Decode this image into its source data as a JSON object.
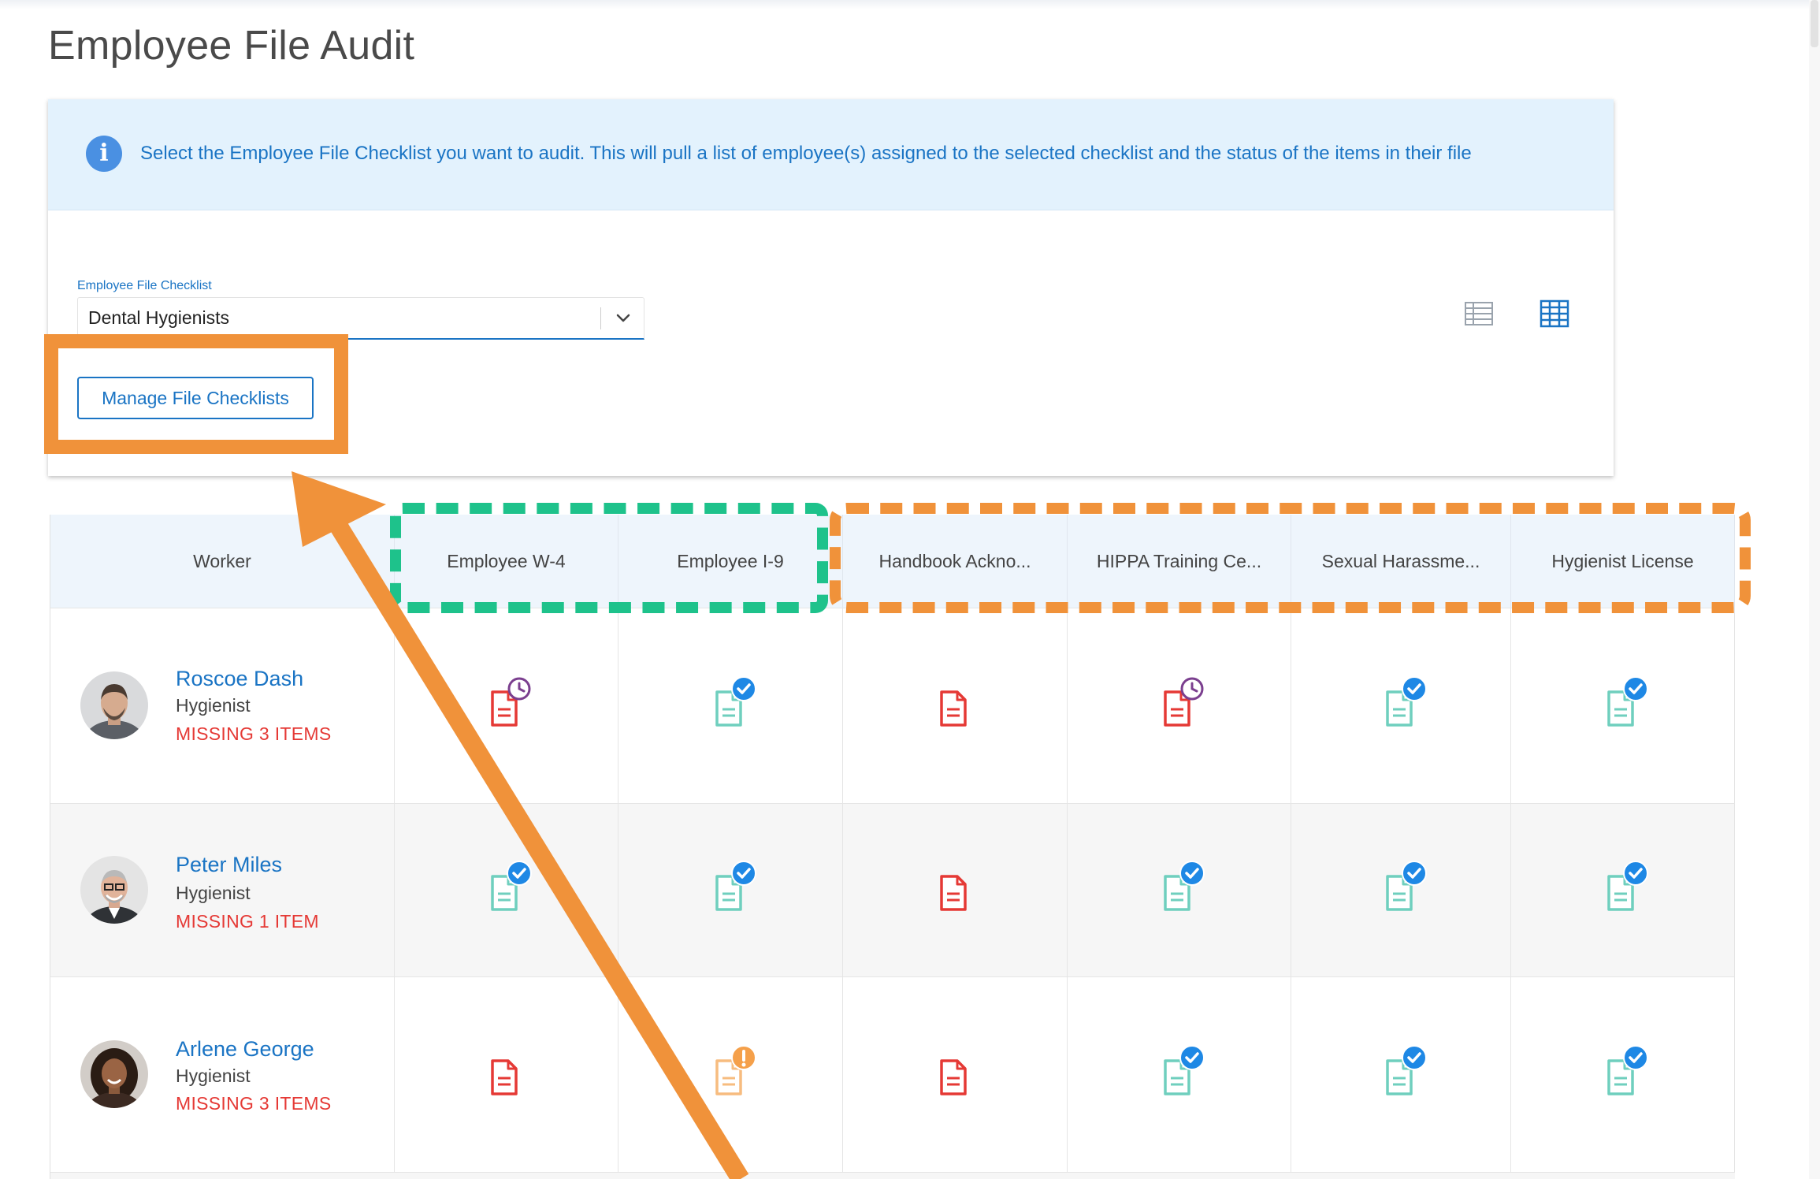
{
  "page": {
    "title": "Employee File Audit"
  },
  "info": {
    "text": "Select the Employee File Checklist you want to audit. This will pull a list of employee(s) assigned to the selected checklist and the status of the items in their file"
  },
  "checklist": {
    "label": "Employee File Checklist",
    "value": "Dental Hygienists"
  },
  "manage_button": "Manage File Checklists",
  "view_toggle": {
    "list_icon": "list-view-icon",
    "grid_icon": "grid-view-icon",
    "active": "grid"
  },
  "grid": {
    "columns": [
      "Worker",
      "Employee W-4",
      "Employee I-9",
      "Handbook Ackno...",
      "HIPPA Training Ce...",
      "Sexual Harassme...",
      "Hygienist License"
    ],
    "rows": [
      {
        "name": "Roscoe Dash",
        "role": "Hygienist",
        "missing": "MISSING 3 ITEMS",
        "statuses": [
          "pending",
          "complete",
          "missing",
          "pending",
          "complete",
          "complete"
        ]
      },
      {
        "name": "Peter Miles",
        "role": "Hygienist",
        "missing": "MISSING 1 ITEM",
        "statuses": [
          "complete",
          "complete",
          "missing",
          "complete",
          "complete",
          "complete"
        ]
      },
      {
        "name": "Arlene George",
        "role": "Hygienist",
        "missing": "MISSING 3 ITEMS",
        "statuses": [
          "missing",
          "warning",
          "missing",
          "complete",
          "complete",
          "complete"
        ]
      }
    ]
  },
  "colors": {
    "accent": "#1a74c4",
    "missing_red": "#e53935",
    "doc_complete": "#6fcfbe",
    "check_blue": "#1e88e5",
    "pending_purple": "#7b3f8f",
    "warning_orange": "#f5a04a",
    "highlight_orange": "#f0923a",
    "highlight_green": "#1ec28b"
  }
}
